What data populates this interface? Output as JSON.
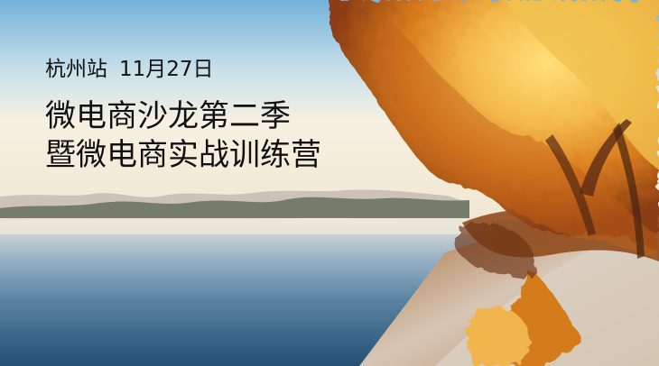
{
  "banner": {
    "location": "杭州站",
    "date": "11月27日",
    "title_line1": "微电商沙龙第二季",
    "title_line2": "暨微电商实战训练营"
  },
  "colors": {
    "sky_top": "#7fb7dc",
    "sky_bottom": "#f3f1e8",
    "water": "#355f82",
    "foliage": "#d98a1c",
    "headline_text": "#111111"
  }
}
